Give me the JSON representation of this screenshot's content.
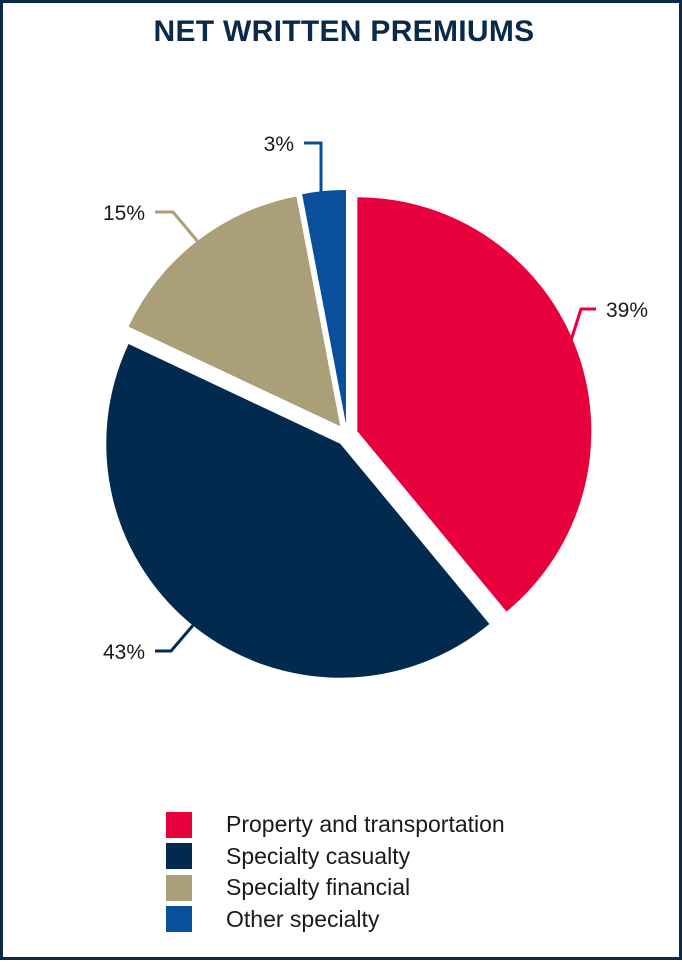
{
  "chart_data": {
    "type": "pie",
    "title": "NET WRITTEN PREMIUMS",
    "slices": [
      {
        "label": "Property and transportation",
        "value": 39,
        "value_label": "39%",
        "color": "#e8003d"
      },
      {
        "label": "Specialty casualty",
        "value": 43,
        "value_label": "43%",
        "color": "#022a4e"
      },
      {
        "label": "Specialty financial",
        "value": 15,
        "value_label": "15%",
        "color": "#ab9f79"
      },
      {
        "label": "Other specialty",
        "value": 3,
        "value_label": "3%",
        "color": "#0a4f9b"
      }
    ],
    "exploded": true,
    "legend_position": "bottom"
  }
}
